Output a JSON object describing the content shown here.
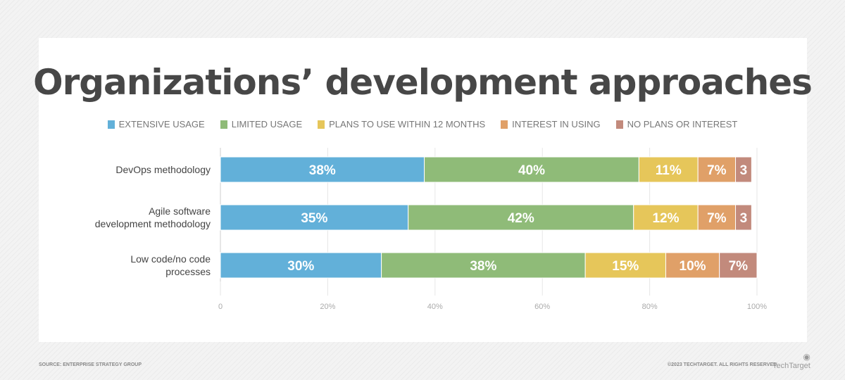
{
  "chart_data": {
    "type": "bar",
    "orientation": "horizontal-stacked",
    "title": "Organizations’ development approaches",
    "categories": [
      [
        "DevOps methodology"
      ],
      [
        "Agile software",
        "development methodology"
      ],
      [
        "Low code/no code",
        "processes"
      ]
    ],
    "series": [
      {
        "name": "EXTENSIVE USAGE",
        "color": "#62b0d9",
        "values": [
          38,
          35,
          30
        ],
        "labels": [
          "38%",
          "35%",
          "30%"
        ]
      },
      {
        "name": "LIMITED USAGE",
        "color": "#8fbb78",
        "values": [
          40,
          42,
          38
        ],
        "labels": [
          "40%",
          "42%",
          "38%"
        ]
      },
      {
        "name": "PLANS TO USE WITHIN 12 MONTHS",
        "color": "#e6c65a",
        "values": [
          11,
          12,
          15
        ],
        "labels": [
          "11%",
          "12%",
          "15%"
        ]
      },
      {
        "name": "INTEREST IN USING",
        "color": "#e0a068",
        "values": [
          7,
          7,
          10
        ],
        "labels": [
          "7%",
          "7%",
          "10%"
        ]
      },
      {
        "name": "NO PLANS OR INTEREST",
        "color": "#c28a7c",
        "values": [
          3,
          3,
          7
        ],
        "labels": [
          "3",
          "3",
          "7%"
        ]
      }
    ],
    "xlim": [
      0,
      100
    ],
    "xticks": [
      "0",
      "20%",
      "40%",
      "60%",
      "80%",
      "100%"
    ],
    "grid": true,
    "legend": "top"
  },
  "footer": {
    "source": "SOURCE: ENTERPRISE STRATEGY GROUP",
    "copyright": "©2023 TECHTARGET. ALL RIGHTS RESERVED",
    "logo": "TechTarget"
  }
}
